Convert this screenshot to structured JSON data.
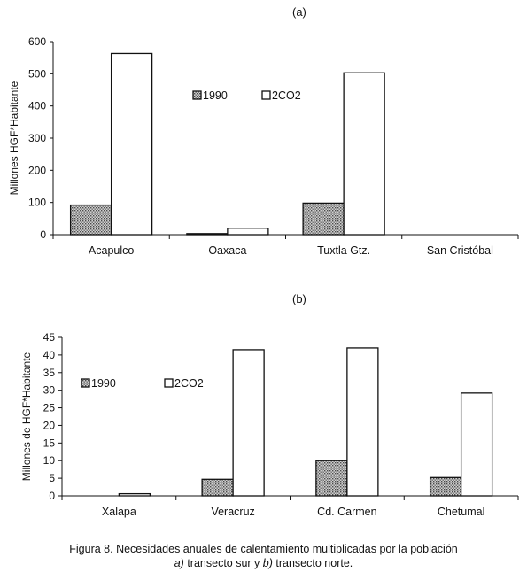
{
  "chart_data": [
    {
      "type": "bar",
      "panel": "(a)",
      "ylabel": "Millones HGF*Habitante",
      "ylim": [
        0,
        600
      ],
      "yticks": [
        "0",
        "100",
        "200",
        "300",
        "400",
        "500",
        "600"
      ],
      "categories": [
        "Acapulco",
        "Oaxaca",
        "Tuxtla Gtz.",
        "San Cristóbal"
      ],
      "series": [
        {
          "name": "1990",
          "values": [
            92,
            2,
            98,
            0
          ],
          "fill": "dotted"
        },
        {
          "name": "2CO2",
          "values": [
            563,
            20,
            503,
            0
          ],
          "fill": "white"
        }
      ],
      "legend": "inside, upper-middle",
      "grid": false
    },
    {
      "type": "bar",
      "panel": "(b)",
      "ylabel": "Millones de HGF*Habitante",
      "ylim": [
        0,
        45
      ],
      "yticks": [
        "0",
        "5",
        "10",
        "15",
        "20",
        "25",
        "30",
        "35",
        "40",
        "45"
      ],
      "categories": [
        "Xalapa",
        "Veracruz",
        "Cd. Carmen",
        "Chetumal"
      ],
      "series": [
        {
          "name": "1990",
          "values": [
            0,
            4.7,
            10,
            5.2
          ],
          "fill": "dotted"
        },
        {
          "name": "2CO2",
          "values": [
            0.6,
            41.5,
            42,
            29.2
          ],
          "fill": "white"
        }
      ],
      "legend": "inside, upper-left",
      "grid": false
    }
  ],
  "caption": {
    "line1": "Figura 8. Necesidades anuales de calentamiento multiplicadas por la población",
    "line2_a": "a)",
    "line2_b": " transecto sur  y ",
    "line2_c": "b)",
    "line2_d": " transecto norte."
  }
}
